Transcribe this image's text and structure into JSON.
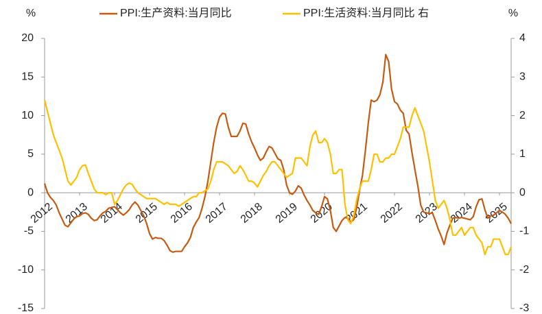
{
  "chart_data": {
    "type": "line",
    "ylabel": "%",
    "y2label": "%",
    "categories": [
      "2012",
      null,
      null,
      null,
      null,
      null,
      null,
      null,
      null,
      null,
      null,
      null,
      "2013",
      null,
      null,
      null,
      null,
      null,
      null,
      null,
      null,
      null,
      null,
      null,
      "2014",
      null,
      null,
      null,
      null,
      null,
      null,
      null,
      null,
      null,
      null,
      null,
      "2015",
      null,
      null,
      null,
      null,
      null,
      null,
      null,
      null,
      null,
      null,
      null,
      "2016",
      null,
      null,
      null,
      null,
      null,
      null,
      null,
      null,
      null,
      null,
      null,
      "2017",
      null,
      null,
      null,
      null,
      null,
      null,
      null,
      null,
      null,
      null,
      null,
      "2018",
      null,
      null,
      null,
      null,
      null,
      null,
      null,
      null,
      null,
      null,
      null,
      "2019",
      null,
      null,
      null,
      null,
      null,
      null,
      null,
      null,
      null,
      null,
      null,
      "2020",
      null,
      null,
      null,
      null,
      null,
      null,
      null,
      null,
      null,
      null,
      null,
      "2021",
      null,
      null,
      null,
      null,
      null,
      null,
      null,
      null,
      null,
      null,
      null,
      "2022",
      null,
      null,
      null,
      null,
      null,
      null,
      null,
      null,
      null,
      null,
      null,
      "2023",
      null,
      null,
      null,
      null,
      null,
      null,
      null,
      null,
      null,
      null,
      null,
      "2024",
      null,
      null,
      null,
      null,
      null,
      null,
      null,
      null,
      null,
      null,
      null,
      "2025",
      null,
      null,
      null,
      null
    ],
    "series": [
      {
        "name": "PPI:生产资料:当月同比",
        "color": "#c55a11",
        "values": [
          1.2,
          0.0,
          -0.6,
          -1.0,
          -1.6,
          -2.6,
          -3.4,
          -4.2,
          -4.4,
          -3.9,
          -3.4,
          -3.1,
          -3.0,
          -2.7,
          -2.6,
          -2.8,
          -3.3,
          -3.6,
          -3.5,
          -3.0,
          -2.6,
          -2.4,
          -2.0,
          -1.9,
          -1.8,
          -2.2,
          -2.6,
          -2.9,
          -2.6,
          -2.2,
          -1.6,
          -1.2,
          -1.6,
          -2.3,
          -3.0,
          -4.0,
          -5.3,
          -6.0,
          -5.8,
          -5.9,
          -5.9,
          -6.2,
          -6.8,
          -7.5,
          -7.7,
          -7.6,
          -7.6,
          -7.6,
          -7.0,
          -6.5,
          -5.8,
          -4.5,
          -3.8,
          -3.2,
          -2.0,
          -0.5,
          1.5,
          4.0,
          6.5,
          8.5,
          9.8,
          10.3,
          10.2,
          8.5,
          7.3,
          7.3,
          7.3,
          8.0,
          9.0,
          8.9,
          7.6,
          6.6,
          5.8,
          4.9,
          4.2,
          4.5,
          5.3,
          6.0,
          5.8,
          5.1,
          4.4,
          4.2,
          3.0,
          1.0,
          0.0,
          -0.2,
          0.2,
          0.9,
          0.6,
          -0.3,
          -1.0,
          -1.6,
          -2.3,
          -2.6,
          -2.8,
          -1.8,
          -0.5,
          -0.8,
          -2.3,
          -4.5,
          -5.0,
          -4.3,
          -3.6,
          -3.2,
          -3.3,
          -3.8,
          -3.5,
          -2.0,
          0.3,
          2.2,
          5.4,
          9.0,
          12.0,
          11.8,
          12.0,
          12.7,
          14.3,
          17.9,
          17.0,
          13.4,
          11.8,
          11.5,
          10.7,
          10.3,
          8.1,
          7.6,
          5.2,
          3.0,
          0.9,
          -1.6,
          -2.5,
          -2.6,
          -2.7,
          -2.6,
          -3.6,
          -4.7,
          -5.6,
          -6.7,
          -5.2,
          -4.2,
          -3.3,
          -3.2,
          -3.3,
          -3.2,
          -3.3,
          -3.4,
          -3.5,
          -3.1,
          -1.8,
          -0.9,
          -0.8,
          -2.2,
          -3.3,
          -3.0,
          -2.9,
          -2.6,
          -2.3,
          -2.5,
          -2.8,
          -3.3,
          -4.0
        ]
      },
      {
        "name": "PPI:生活资料:当月同比 右",
        "color": "#ffc000",
        "axis": "y2",
        "values": [
          2.4,
          2.1,
          1.8,
          1.5,
          1.3,
          1.1,
          0.9,
          0.6,
          0.3,
          0.2,
          0.3,
          0.4,
          0.6,
          0.7,
          0.72,
          0.5,
          0.3,
          0.1,
          0.0,
          0.0,
          0.0,
          -0.05,
          0.0,
          0.0,
          -0.3,
          -0.2,
          -0.05,
          0.1,
          0.2,
          0.25,
          0.22,
          0.1,
          0.0,
          -0.05,
          -0.1,
          -0.15,
          -0.15,
          -0.15,
          -0.15,
          -0.2,
          -0.25,
          -0.3,
          -0.25,
          -0.3,
          -0.3,
          -0.3,
          -0.35,
          -0.3,
          -0.25,
          -0.2,
          -0.15,
          -0.1,
          -0.1,
          0.0,
          0.0,
          0.05,
          0.1,
          0.3,
          0.6,
          0.8,
          0.8,
          0.8,
          0.75,
          0.7,
          0.6,
          0.5,
          0.55,
          0.7,
          0.6,
          0.45,
          0.3,
          0.3,
          0.25,
          0.15,
          0.3,
          0.45,
          0.55,
          0.7,
          0.8,
          0.8,
          0.7,
          0.6,
          0.5,
          0.4,
          0.45,
          0.5,
          0.9,
          0.9,
          0.9,
          0.8,
          0.7,
          1.2,
          1.5,
          1.6,
          1.3,
          1.3,
          1.4,
          1.3,
          1.0,
          0.5,
          0.5,
          0.6,
          0.6,
          -0.3,
          -0.7,
          -0.8,
          -0.6,
          -0.2,
          0.1,
          0.3,
          0.3,
          0.3,
          0.6,
          1.0,
          1.0,
          0.8,
          0.8,
          0.9,
          0.9,
          1.0,
          1.0,
          1.2,
          1.4,
          1.7,
          1.7,
          1.7,
          2.0,
          2.2,
          2.0,
          1.8,
          1.6,
          1.2,
          0.8,
          0.3,
          -0.2,
          -0.4,
          -0.3,
          -0.2,
          -0.4,
          -0.7,
          -1.1,
          -1.1,
          -1.0,
          -0.9,
          -1.1,
          -1.0,
          -0.9,
          -0.9,
          -1.1,
          -1.2,
          -1.3,
          -1.6,
          -1.4,
          -1.4,
          -1.2,
          -1.2,
          -1.2,
          -1.4,
          -1.6,
          -1.6,
          -1.4
        ]
      }
    ],
    "ylim": [
      -15,
      20
    ],
    "yticks": [
      -15,
      -10,
      -5,
      0,
      5,
      10,
      15,
      20
    ],
    "y2lim": [
      -3,
      4
    ],
    "y2ticks": [
      -3,
      -2,
      -1,
      0,
      1,
      2,
      3,
      4
    ],
    "legend": "top"
  }
}
